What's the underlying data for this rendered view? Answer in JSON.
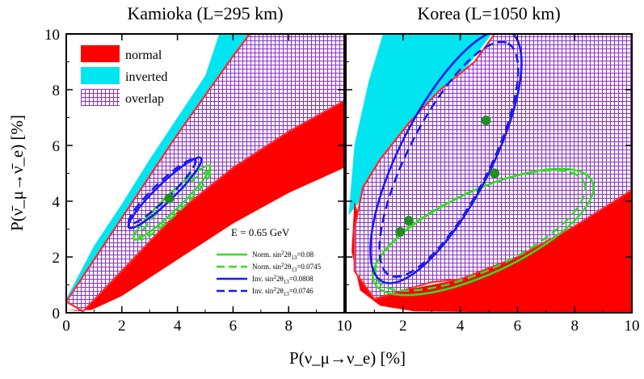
{
  "chart_data": {
    "type": "area",
    "xlabel": "P(ν_μ→ν_e) [%]",
    "ylabel": "P(ν̄_μ→ν̄_e) [%]",
    "xlim": [
      0,
      10
    ],
    "ylim": [
      0,
      10
    ],
    "ticks": [
      "0",
      "2",
      "4",
      "6",
      "8",
      "10"
    ],
    "panels": [
      {
        "title": "Kamioka (L=295 km)",
        "normal_region": [
          [
            0,
            0.1
          ],
          [
            0.6,
            0.05
          ],
          [
            2,
            1.5
          ],
          [
            4,
            3.6
          ],
          [
            6,
            5.2
          ],
          [
            8,
            6.5
          ],
          [
            10,
            7.6
          ],
          [
            10,
            5.2
          ],
          [
            8,
            4.3
          ],
          [
            6,
            3.2
          ],
          [
            4,
            1.9
          ],
          [
            2,
            0.6
          ],
          [
            0.9,
            0.1
          ]
        ],
        "inverted_region": [
          [
            0,
            0.5
          ],
          [
            1,
            2.4
          ],
          [
            2,
            3.9
          ],
          [
            3,
            5.5
          ],
          [
            4,
            7
          ],
          [
            5,
            8.5
          ],
          [
            5.5,
            10
          ],
          [
            10,
            10
          ],
          [
            10,
            8
          ],
          [
            8,
            6.8
          ],
          [
            6,
            5.5
          ],
          [
            4,
            4
          ],
          [
            2,
            2.3
          ],
          [
            1,
            1.1
          ],
          [
            0,
            0.3
          ]
        ],
        "overlap_region": [
          [
            0,
            0.4
          ],
          [
            1,
            1.9
          ],
          [
            2,
            3.4
          ],
          [
            3,
            4.9
          ],
          [
            4,
            6.4
          ],
          [
            5,
            7.8
          ],
          [
            6,
            9.2
          ],
          [
            6.6,
            10
          ],
          [
            10,
            10
          ],
          [
            10,
            7.6
          ],
          [
            8,
            6.5
          ],
          [
            6,
            5.2
          ],
          [
            4,
            3.6
          ],
          [
            2,
            1.5
          ],
          [
            0.6,
            0.05
          ]
        ],
        "points": [
          [
            3.7,
            4.1
          ]
        ],
        "ellipses": [
          {
            "series": "norm_008",
            "cx": 3.8,
            "cy": 3.95,
            "rx": 1.9,
            "ry": 0.28,
            "angle_deg": -44
          },
          {
            "series": "norm_00745",
            "cx": 3.9,
            "cy": 3.85,
            "rx": 1.75,
            "ry": 0.26,
            "angle_deg": -44
          },
          {
            "series": "inv_00808",
            "cx": 3.55,
            "cy": 4.3,
            "rx": 1.8,
            "ry": 0.32,
            "angle_deg": -44
          },
          {
            "series": "inv_00746",
            "cx": 3.45,
            "cy": 4.35,
            "rx": 1.65,
            "ry": 0.3,
            "angle_deg": -44
          }
        ]
      },
      {
        "title": "Korea (L=1050 km)",
        "normal_region": [
          [
            0.3,
            4
          ],
          [
            0.2,
            2.2
          ],
          [
            0.5,
            0.8
          ],
          [
            1.2,
            0.25
          ],
          [
            2.4,
            0.05
          ],
          [
            5,
            0.02
          ],
          [
            10,
            0.02
          ],
          [
            10,
            4.4
          ],
          [
            8,
            3.1
          ],
          [
            6,
            2
          ],
          [
            4,
            1.2
          ],
          [
            2,
            0.8
          ],
          [
            1,
            1.8
          ],
          [
            0.5,
            3.3
          ]
        ],
        "inverted_region": [
          [
            0.1,
            3.5
          ],
          [
            0.3,
            6
          ],
          [
            0.8,
            8.3
          ],
          [
            1.3,
            10
          ],
          [
            5.1,
            10
          ],
          [
            4,
            8.5
          ],
          [
            3,
            7
          ],
          [
            2,
            5.5
          ],
          [
            1,
            4.5
          ],
          [
            0.5,
            4
          ]
        ],
        "overlap_region": [
          [
            0.3,
            3
          ],
          [
            0.6,
            4.5
          ],
          [
            1.2,
            5.5
          ],
          [
            2.2,
            6.8
          ],
          [
            3.3,
            8
          ],
          [
            4.5,
            9
          ],
          [
            5.2,
            10
          ],
          [
            10,
            10
          ],
          [
            10,
            4.4
          ],
          [
            8,
            3.1
          ],
          [
            6,
            2
          ],
          [
            4,
            1.2
          ],
          [
            3,
            1.1
          ],
          [
            2,
            0.8
          ],
          [
            1,
            0.5
          ],
          [
            0.3,
            1.5
          ]
        ],
        "points": [
          [
            4.9,
            6.9
          ],
          [
            5.2,
            5.0
          ],
          [
            2.2,
            3.3
          ],
          [
            1.9,
            2.9
          ]
        ],
        "ellipses": [
          {
            "series": "norm_008",
            "cx": 4.8,
            "cy": 2.9,
            "rx": 4.2,
            "ry": 1.45,
            "angle_deg": -25
          },
          {
            "series": "norm_00745",
            "cx": 4.7,
            "cy": 2.95,
            "rx": 4.0,
            "ry": 1.38,
            "angle_deg": -25
          },
          {
            "series": "inv_00808",
            "cx": 3.5,
            "cy": 5.6,
            "rx": 4.9,
            "ry": 1.6,
            "angle_deg": -63
          },
          {
            "series": "inv_00746",
            "cx": 3.6,
            "cy": 5.5,
            "rx": 4.55,
            "ry": 1.42,
            "angle_deg": -63
          }
        ]
      }
    ],
    "legend_regions": [
      {
        "label": "normal",
        "color": "#ff0000"
      },
      {
        "label": "inverted",
        "color": "#00e5f0"
      },
      {
        "label": "overlap",
        "color": "#9a3fd0"
      }
    ],
    "legend_lines": [
      {
        "id": "norm_008",
        "label": "Norm.",
        "param": "0.08",
        "color": "#33dd22",
        "dash": false
      },
      {
        "id": "norm_00745",
        "label": "Norm.",
        "param": "0.0745",
        "color": "#33dd22",
        "dash": true
      },
      {
        "id": "inv_00808",
        "label": "Inv.",
        "param": "0.0808",
        "color": "#1a1aee",
        "dash": false
      },
      {
        "id": "inv_00746",
        "label": "Inv.",
        "param": "0.0746",
        "color": "#1a1aee",
        "dash": true
      }
    ],
    "annotation": "E = 0.65 GeV",
    "sin_label": "sin",
    "theta_label": "2θ",
    "theta_sub": "13",
    "point_color": "#1f8f1f"
  }
}
